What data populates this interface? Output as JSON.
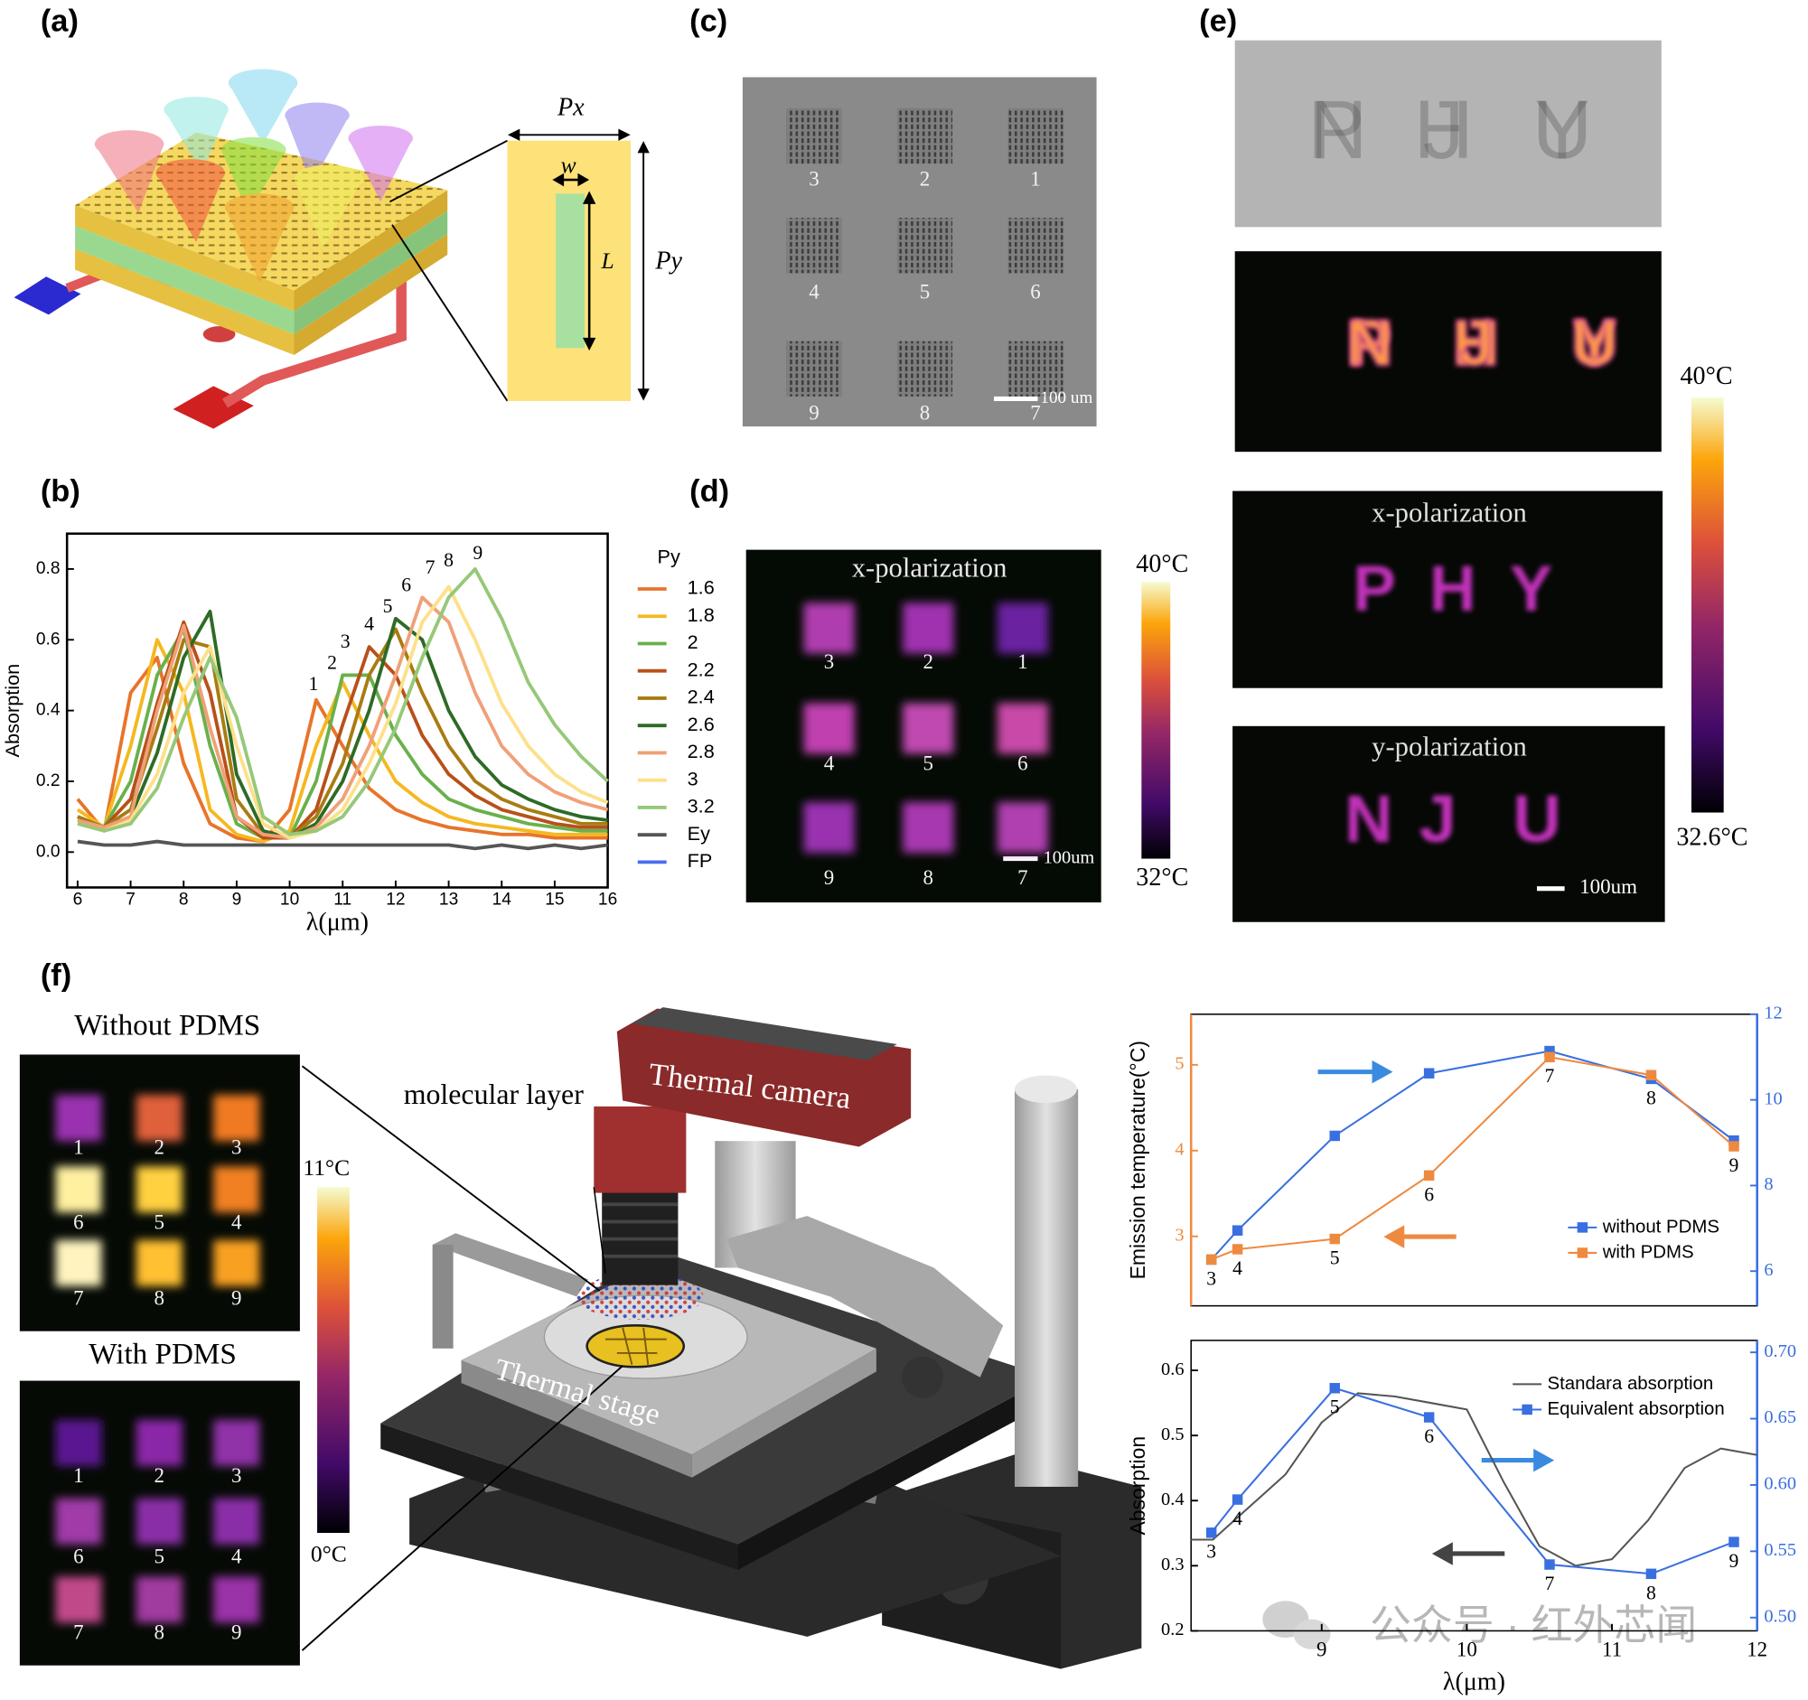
{
  "panels": {
    "a": {
      "label": "(a)",
      "px": "Px",
      "w": "w",
      "L": "L",
      "py": "Py"
    },
    "b": {
      "label": "(b)"
    },
    "c": {
      "label": "(c)",
      "numbers": [
        "3",
        "2",
        "1",
        "4",
        "5",
        "6",
        "9",
        "8",
        "7"
      ],
      "scale": "100 um"
    },
    "d": {
      "label": "(d)",
      "title": "x-polarization",
      "numbers": [
        "3",
        "2",
        "1",
        "4",
        "5",
        "6",
        "9",
        "8",
        "7"
      ],
      "scale": "100um",
      "cbar_max": "40°C",
      "cbar_min": "32°C"
    },
    "e": {
      "label": "(e)",
      "x_caption": "x-polarization",
      "y_caption": "y-polarization",
      "x_letters": [
        "P",
        "H",
        "Y"
      ],
      "y_letters": [
        "N",
        "J",
        "U"
      ],
      "scale": "100um",
      "cbar_max": "40°C",
      "cbar_min": "32.6°C"
    },
    "f": {
      "label": "(f)",
      "without": "Without PDMS",
      "with": "With PDMS",
      "numbers": [
        "1",
        "2",
        "3",
        "6",
        "5",
        "4",
        "7",
        "8",
        "9"
      ],
      "cbar_max": "11°C",
      "cbar_min": "0°C",
      "molecular": "molecular layer",
      "camera": "Thermal camera",
      "stage": "Thermal stage"
    },
    "watermark": "公众号 · 红外芯闻"
  },
  "chart_data": [
    {
      "type": "line",
      "xlabel": "λ(μm)",
      "ylabel": "Absorption",
      "legend": "outside right",
      "legend_title": "Py",
      "xlim": [
        5.8,
        16
      ],
      "ylim": [
        -0.1,
        0.9
      ],
      "xticks": [
        6,
        7,
        8,
        9,
        10,
        11,
        12,
        13,
        14,
        15,
        16
      ],
      "yticks": [
        {
          "value": 0,
          "label": "0.0"
        },
        0.2,
        0.4,
        0.6,
        0.8
      ],
      "x": [
        6,
        6.5,
        7,
        7.5,
        8,
        8.5,
        9,
        9.5,
        10,
        10.5,
        11,
        11.5,
        12,
        12.5,
        13,
        13.5,
        14,
        14.5,
        15,
        15.5,
        16
      ],
      "series": [
        {
          "name": "1.6",
          "color": "#e8742a",
          "values": [
            0.15,
            0.06,
            0.45,
            0.55,
            0.25,
            0.08,
            0.04,
            0.03,
            0.12,
            0.43,
            0.3,
            0.18,
            0.12,
            0.09,
            0.07,
            0.06,
            0.05,
            0.05,
            0.04,
            0.04,
            0.04
          ]
        },
        {
          "name": "1.8",
          "color": "#f5b820",
          "values": [
            0.12,
            0.07,
            0.3,
            0.6,
            0.45,
            0.12,
            0.05,
            0.03,
            0.06,
            0.3,
            0.48,
            0.33,
            0.2,
            0.14,
            0.1,
            0.08,
            0.07,
            0.06,
            0.05,
            0.05,
            0.05
          ]
        },
        {
          "name": "2",
          "color": "#6ab04c",
          "values": [
            0.1,
            0.07,
            0.2,
            0.5,
            0.63,
            0.3,
            0.08,
            0.04,
            0.04,
            0.2,
            0.5,
            0.5,
            0.33,
            0.22,
            0.15,
            0.12,
            0.1,
            0.08,
            0.07,
            0.06,
            0.06
          ]
        },
        {
          "name": "2.2",
          "color": "#b8501a",
          "values": [
            0.1,
            0.07,
            0.15,
            0.42,
            0.65,
            0.45,
            0.1,
            0.04,
            0.04,
            0.12,
            0.36,
            0.58,
            0.5,
            0.33,
            0.22,
            0.16,
            0.12,
            0.1,
            0.08,
            0.07,
            0.07
          ]
        },
        {
          "name": "2.4",
          "color": "#a87c12",
          "values": [
            0.1,
            0.07,
            0.12,
            0.35,
            0.6,
            0.58,
            0.15,
            0.05,
            0.04,
            0.1,
            0.25,
            0.5,
            0.63,
            0.45,
            0.3,
            0.2,
            0.15,
            0.12,
            0.1,
            0.08,
            0.08
          ]
        },
        {
          "name": "2.6",
          "color": "#2e6b26",
          "values": [
            0.09,
            0.07,
            0.1,
            0.28,
            0.55,
            0.68,
            0.22,
            0.06,
            0.04,
            0.08,
            0.2,
            0.4,
            0.66,
            0.6,
            0.4,
            0.27,
            0.19,
            0.15,
            0.12,
            0.1,
            0.09
          ]
        },
        {
          "name": "2.8",
          "color": "#f0a078",
          "values": [
            0.09,
            0.07,
            0.1,
            0.4,
            0.64,
            0.35,
            0.1,
            0.05,
            0.04,
            0.07,
            0.15,
            0.3,
            0.5,
            0.72,
            0.65,
            0.45,
            0.3,
            0.22,
            0.17,
            0.14,
            0.12
          ]
        },
        {
          "name": "3",
          "color": "#fde08a",
          "values": [
            0.08,
            0.06,
            0.09,
            0.22,
            0.45,
            0.58,
            0.3,
            0.08,
            0.04,
            0.06,
            0.12,
            0.25,
            0.42,
            0.65,
            0.75,
            0.6,
            0.42,
            0.3,
            0.22,
            0.17,
            0.14
          ]
        },
        {
          "name": "3.2",
          "color": "#96c878",
          "values": [
            0.08,
            0.06,
            0.08,
            0.18,
            0.38,
            0.55,
            0.38,
            0.1,
            0.05,
            0.06,
            0.1,
            0.2,
            0.35,
            0.55,
            0.72,
            0.8,
            0.66,
            0.48,
            0.36,
            0.27,
            0.2
          ]
        },
        {
          "name": "Ey",
          "color": "#555555",
          "values": [
            0.03,
            0.02,
            0.02,
            0.03,
            0.02,
            0.02,
            0.02,
            0.02,
            0.02,
            0.02,
            0.02,
            0.02,
            0.02,
            0.02,
            0.02,
            0.01,
            0.02,
            0.01,
            0.02,
            0.01,
            0.02
          ]
        },
        {
          "name": "FP",
          "color": "#4a6cf0",
          "values": [
            null,
            null,
            null,
            null,
            null,
            null,
            null,
            null,
            null,
            null,
            null,
            null,
            null,
            null,
            null,
            null,
            null,
            null,
            null,
            null,
            null
          ]
        }
      ],
      "annotations": [
        {
          "text": "1",
          "x": 10.45,
          "y": 0.47
        },
        {
          "text": "2",
          "x": 10.8,
          "y": 0.53
        },
        {
          "text": "3",
          "x": 11.05,
          "y": 0.59
        },
        {
          "text": "4",
          "x": 11.5,
          "y": 0.64
        },
        {
          "text": "5",
          "x": 11.85,
          "y": 0.69
        },
        {
          "text": "6",
          "x": 12.2,
          "y": 0.75
        },
        {
          "text": "7",
          "x": 12.65,
          "y": 0.8
        },
        {
          "text": "8",
          "x": 13.0,
          "y": 0.82
        },
        {
          "text": "9",
          "x": 13.55,
          "y": 0.84
        }
      ]
    },
    {
      "type": "line",
      "ylabel": "Emission temperature(°C)",
      "legend": "lower right",
      "xlim": [
        8.1,
        12
      ],
      "ylim": [
        2.19,
        5.59
      ],
      "yticks": [
        3,
        4,
        5
      ],
      "y2lim": [
        5.19,
        12
      ],
      "y2ticks": [
        6,
        8,
        10,
        12
      ],
      "y_color": "#ee8a40",
      "y2_color": "#3a6fe0",
      "x": [
        8.24,
        8.42,
        9.09,
        9.74,
        10.57,
        11.27,
        11.84
      ],
      "point_labels": [
        "3",
        "4",
        "5",
        "6",
        "7",
        "8",
        "9"
      ],
      "series": [
        {
          "name": "without PDMS",
          "color": "#3a6fe0",
          "marker": "square",
          "axis": "y2",
          "values": [
            6.27,
            6.95,
            9.16,
            10.62,
            11.14,
            10.49,
            9.05
          ]
        },
        {
          "name": "with PDMS",
          "color": "#ee8a40",
          "marker": "square",
          "values": [
            2.73,
            2.85,
            2.97,
            3.71,
            5.09,
            4.88,
            4.05
          ]
        }
      ]
    },
    {
      "type": "line",
      "xlabel": "λ(μm)",
      "ylabel": "Absorption",
      "legend": "upper right",
      "xlim": [
        8.1,
        12
      ],
      "xticks": [
        9,
        10,
        11,
        12
      ],
      "ylim": [
        0.2,
        0.646
      ],
      "yticks": [
        0.2,
        0.3,
        0.4,
        0.5,
        0.6
      ],
      "y2lim": [
        0.49,
        0.709
      ],
      "y2ticks": [
        {
          "value": 0.5,
          "label": "0.50"
        },
        {
          "value": 0.55,
          "label": "0.55"
        },
        {
          "value": 0.6,
          "label": "0.60"
        },
        {
          "value": 0.65,
          "label": "0.65"
        },
        {
          "value": 0.7,
          "label": "0.70"
        }
      ],
      "y2_color": "#3a6fe0",
      "x": [
        8.24,
        8.42,
        9.09,
        9.74,
        10.57,
        11.27,
        11.84
      ],
      "point_labels": [
        "3",
        "4",
        "5",
        "6",
        "7",
        "8",
        "9"
      ],
      "series": [
        {
          "name": "Standara absorption",
          "color": "#555555",
          "x": [
            8.1,
            8.25,
            8.5,
            8.75,
            9,
            9.25,
            9.5,
            9.75,
            10,
            10.25,
            10.5,
            10.75,
            11,
            11.25,
            11.5,
            11.75,
            12
          ],
          "values": [
            0.34,
            0.34,
            0.39,
            0.44,
            0.52,
            0.565,
            0.56,
            0.55,
            0.54,
            0.43,
            0.33,
            0.3,
            0.31,
            0.37,
            0.45,
            0.48,
            0.47
          ]
        },
        {
          "name": "Equivalent absorption",
          "color": "#3a6fe0",
          "marker": "square",
          "axis": "y2",
          "values": [
            0.564,
            0.589,
            0.673,
            0.651,
            0.54,
            0.533,
            0.557
          ]
        }
      ]
    }
  ]
}
